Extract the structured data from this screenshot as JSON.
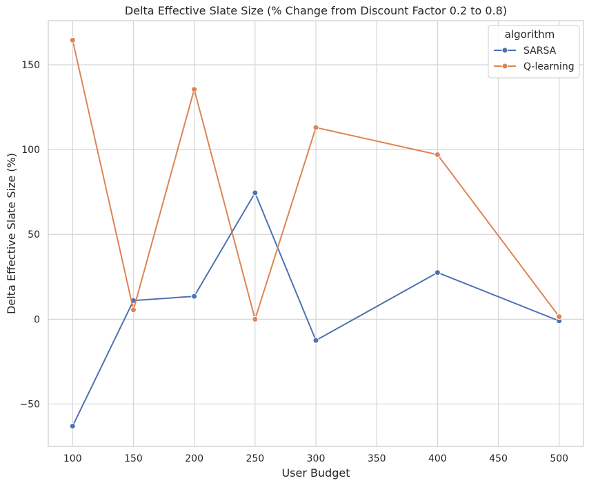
{
  "chart_data": {
    "type": "line",
    "title": "Delta Effective Slate Size (% Change from Discount Factor 0.2 to 0.8)",
    "xlabel": "User Budget",
    "ylabel": "Delta Effective Slate Size (%)",
    "xlim": [
      80,
      520
    ],
    "ylim": [
      -75,
      176
    ],
    "xticks": [
      100,
      150,
      200,
      250,
      300,
      350,
      400,
      450,
      500
    ],
    "yticks": [
      -50,
      0,
      50,
      100,
      150
    ],
    "ytick_labels": [
      "−50",
      "0",
      "50",
      "100",
      "150"
    ],
    "grid": true,
    "legend": {
      "title": "algorithm",
      "position": "top-right"
    },
    "x": [
      100,
      150,
      200,
      250,
      300,
      400,
      500
    ],
    "series": [
      {
        "name": "SARSA",
        "color": "#4c72b0",
        "values": [
          -63,
          11,
          13.5,
          74.5,
          -12.5,
          27.5,
          -1
        ]
      },
      {
        "name": "Q-learning",
        "color": "#dd8452",
        "values": [
          164.5,
          5.5,
          135.5,
          0,
          113,
          97,
          1.5
        ]
      }
    ]
  }
}
